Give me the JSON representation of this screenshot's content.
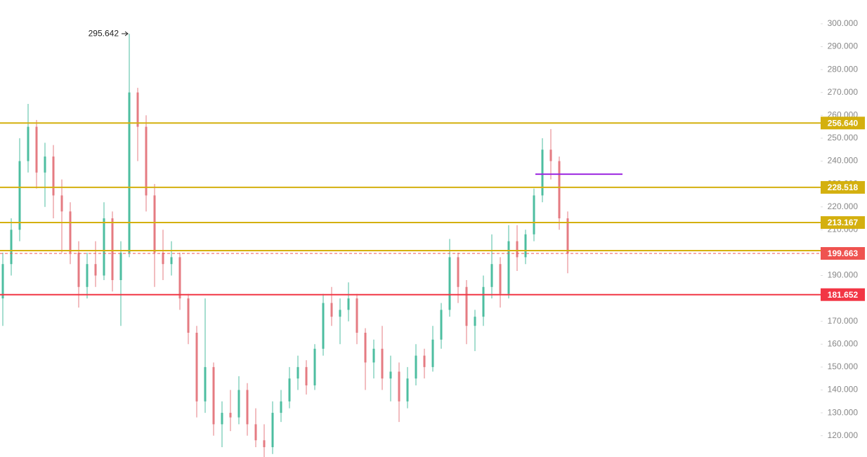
{
  "chart_data": {
    "type": "candlestick",
    "open": [
      180,
      195,
      210,
      240,
      255,
      235,
      242,
      225,
      218,
      200,
      185,
      195,
      190,
      215,
      188,
      200,
      270,
      255,
      225,
      200,
      195,
      198,
      180,
      165,
      135,
      150,
      125,
      130,
      128,
      140,
      125,
      118,
      115,
      130,
      135,
      145,
      150,
      142,
      158,
      178,
      172,
      175,
      180,
      165,
      152,
      158,
      145,
      148,
      135,
      145,
      155,
      150,
      162,
      175,
      198,
      185,
      168,
      172,
      185,
      195,
      182,
      205,
      198,
      208,
      225,
      245,
      240,
      215
    ],
    "high": [
      200,
      215,
      250,
      265,
      258,
      248,
      247,
      232,
      222,
      205,
      200,
      205,
      222,
      218,
      205,
      295.642,
      272,
      260,
      230,
      210,
      205,
      200,
      182,
      168,
      180,
      152,
      135,
      140,
      146,
      143,
      132,
      125,
      135,
      140,
      150,
      155,
      153,
      160,
      182,
      185,
      180,
      187,
      182,
      167,
      162,
      168,
      155,
      152,
      150,
      160,
      158,
      168,
      178,
      206,
      200,
      188,
      175,
      190,
      208,
      198,
      212,
      212,
      210,
      228,
      250,
      254,
      242,
      218
    ],
    "low": [
      168,
      190,
      205,
      235,
      228,
      220,
      215,
      200,
      195,
      176,
      180,
      185,
      188,
      183,
      168,
      198,
      240,
      218,
      185,
      188,
      190,
      175,
      160,
      128,
      130,
      120,
      115,
      122,
      125,
      120,
      115,
      110,
      112,
      126,
      132,
      140,
      138,
      140,
      155,
      168,
      160,
      170,
      160,
      140,
      145,
      140,
      135,
      126,
      132,
      142,
      145,
      148,
      158,
      172,
      178,
      160,
      157,
      168,
      180,
      176,
      180,
      192,
      195,
      205,
      222,
      232,
      210,
      191
    ],
    "close": [
      195,
      210,
      240,
      255,
      235,
      242,
      225,
      218,
      200,
      185,
      195,
      190,
      215,
      188,
      200,
      270,
      255,
      225,
      200,
      195,
      198,
      180,
      165,
      135,
      150,
      125,
      130,
      128,
      140,
      125,
      118,
      115,
      130,
      135,
      145,
      150,
      142,
      158,
      178,
      172,
      175,
      180,
      165,
      152,
      158,
      145,
      148,
      135,
      145,
      155,
      150,
      162,
      175,
      198,
      185,
      168,
      172,
      185,
      195,
      182,
      205,
      198,
      208,
      225,
      245,
      240,
      215,
      199.663
    ],
    "up_color": "#4dbea0",
    "down_color": "#e57b82",
    "high_label": "295.642",
    "ylim": [
      110.7,
      310.4
    ],
    "yticks": [
      {
        "value": 120,
        "label": "120.000"
      },
      {
        "value": 130,
        "label": "130.000"
      },
      {
        "value": 140,
        "label": "140.000"
      },
      {
        "value": 150,
        "label": "150.000"
      },
      {
        "value": 160,
        "label": "160.000"
      },
      {
        "value": 170,
        "label": "170.000"
      },
      {
        "value": 180,
        "label": "180.000"
      },
      {
        "value": 190,
        "label": "190.000"
      },
      {
        "value": 200,
        "label": "200.000"
      },
      {
        "value": 210,
        "label": "210.000"
      },
      {
        "value": 220,
        "label": "220.000"
      },
      {
        "value": 230,
        "label": "230.000"
      },
      {
        "value": 240,
        "label": "240.000"
      },
      {
        "value": 250,
        "label": "250.000"
      },
      {
        "value": 260,
        "label": "260.000"
      },
      {
        "value": 270,
        "label": "270.000"
      },
      {
        "value": 280,
        "label": "280.000"
      },
      {
        "value": 290,
        "label": "290.000"
      },
      {
        "value": 300,
        "label": "300.000"
      }
    ],
    "levels": [
      {
        "value": 256.64,
        "label": "256.640",
        "color": "#d4b00f",
        "style": "solid"
      },
      {
        "value": 228.518,
        "label": "228.518",
        "color": "#d4b00f",
        "style": "solid"
      },
      {
        "value": 213.167,
        "label": "213.167",
        "color": "#d4b00f",
        "style": "solid"
      },
      {
        "value": 200.9,
        "color": "#d4b00f",
        "style": "solid"
      },
      {
        "value": 181.652,
        "label": "181.652",
        "color": "#f23645",
        "style": "solid"
      },
      {
        "value": 199.663,
        "label": "199.663",
        "color": "#ef5350",
        "style": "dashed"
      }
    ],
    "segment": {
      "value": 234.3,
      "color": "#9c27e0"
    }
  }
}
